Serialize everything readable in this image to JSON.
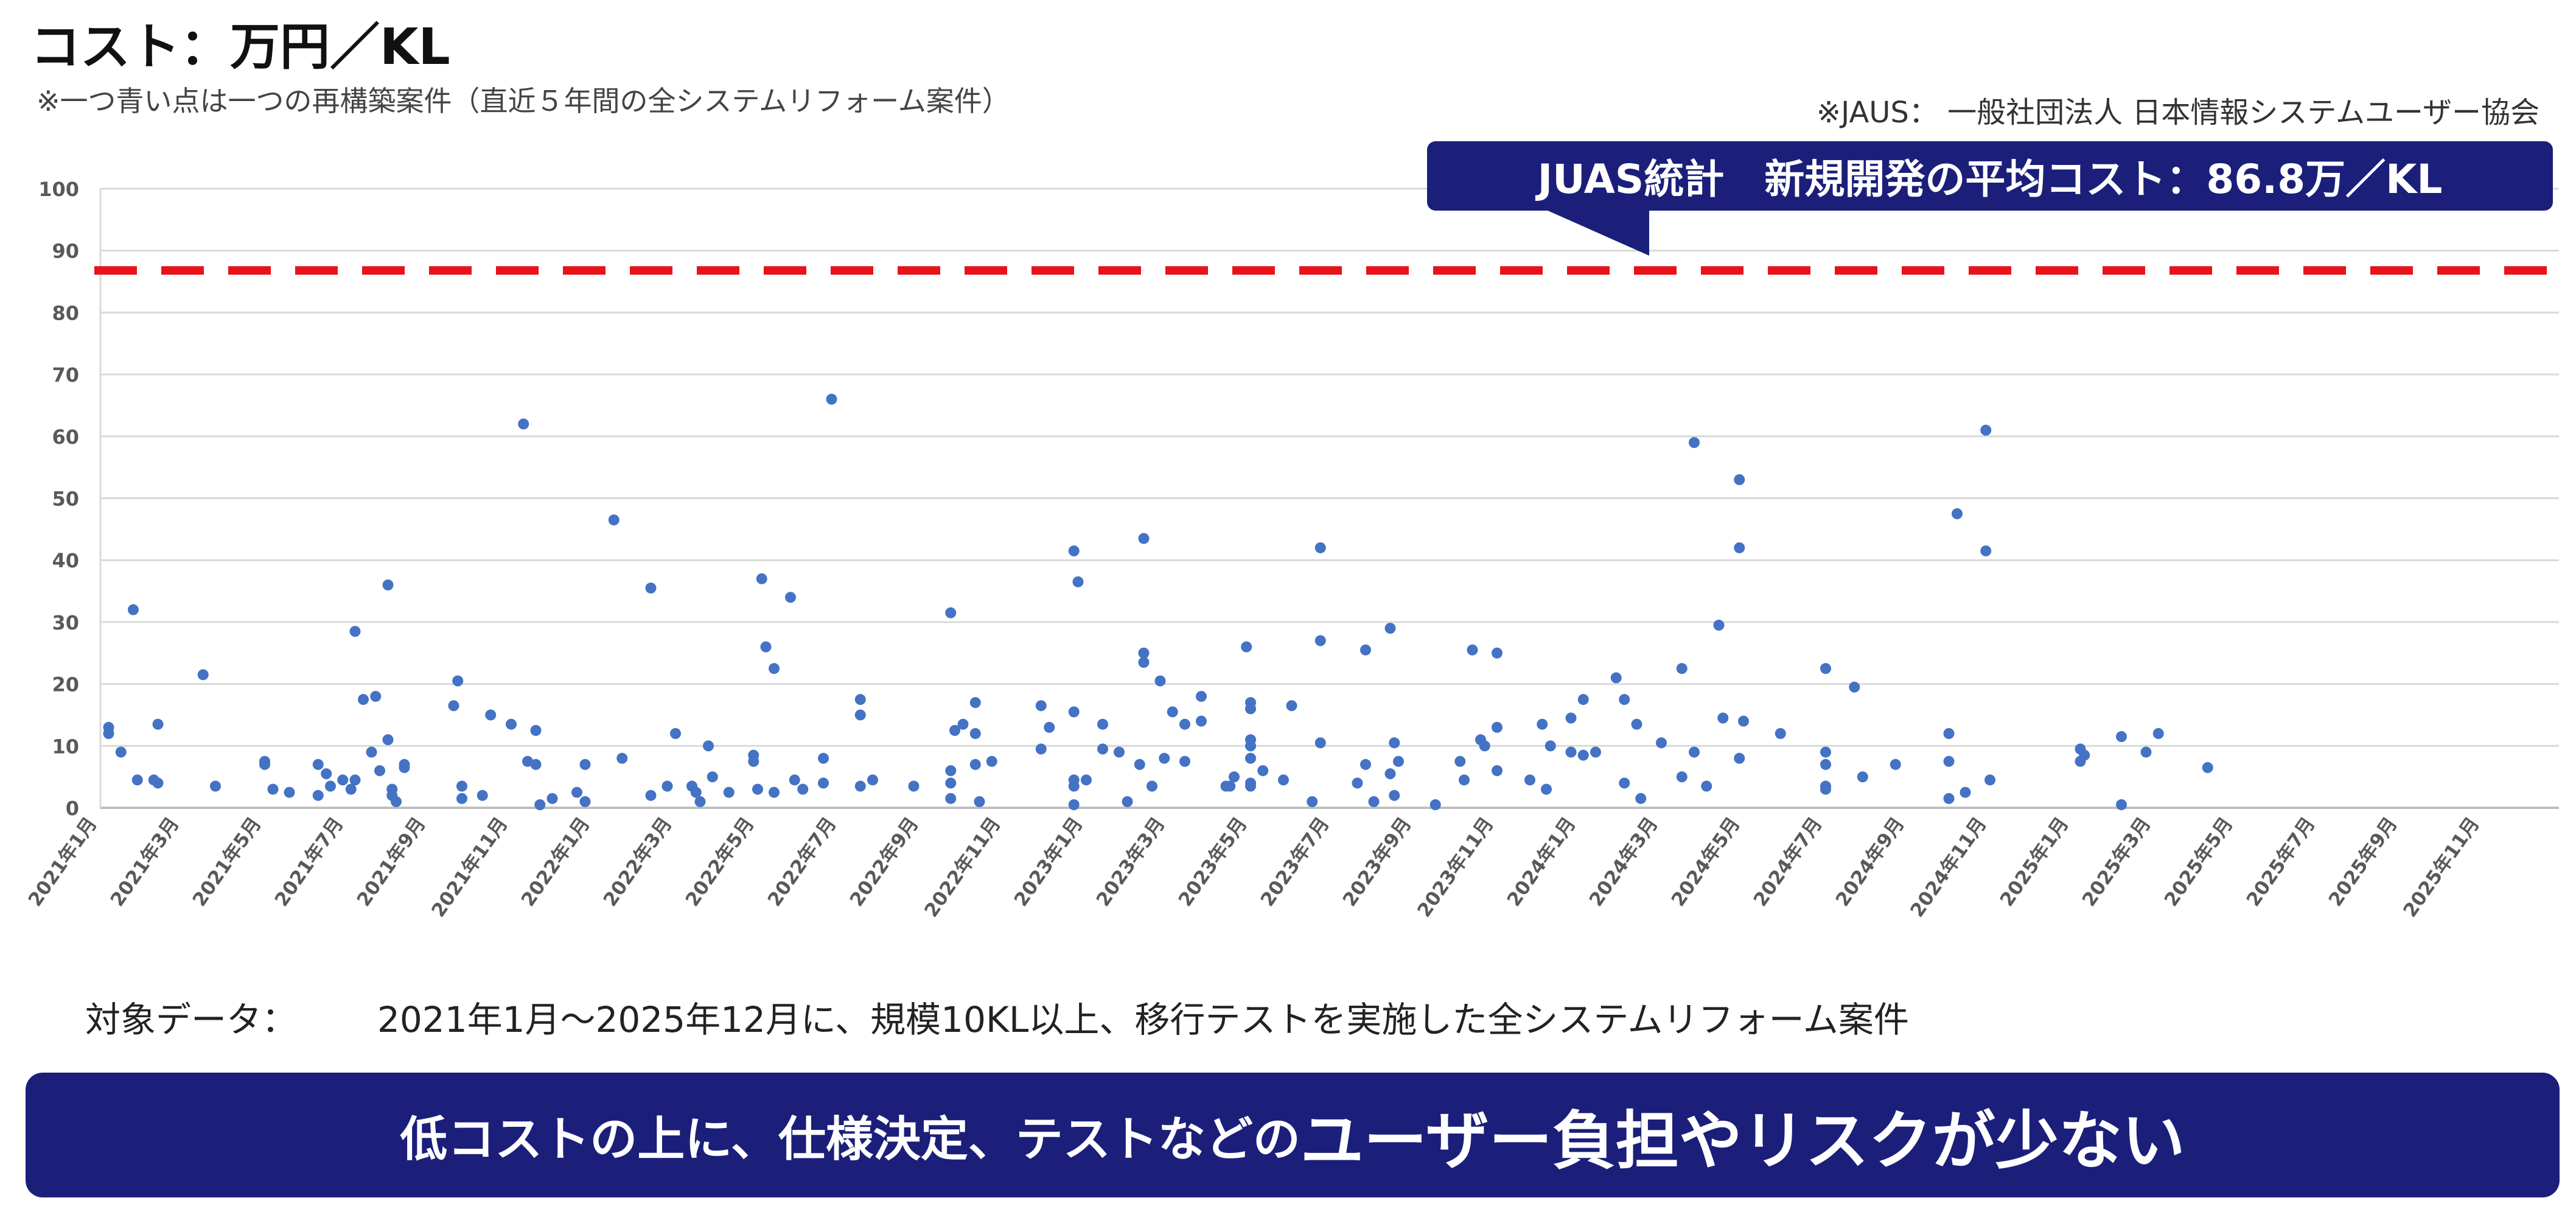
{
  "header": {
    "title": "コスト：万円／KL",
    "note": "※一つ青い点は一つの再構築案件（直近５年間の全システムリフォーム案件）",
    "source": "※JAUS： 一般社団法人 日本情報システムユーザー協会"
  },
  "callout": {
    "text": "JUAS統計　新規開発の平均コスト：86.8万／KL"
  },
  "footer": {
    "target_label": "対象データ：",
    "target_text": "2021年1月～2025年12月に、規模10KL以上、移行テストを実施した全システムリフォーム案件",
    "banner_small": "低コストの上に、仕様決定、テストなどの",
    "banner_big": "ユーザー負担やリスクが少ない"
  },
  "colors": {
    "point": "#4472c4",
    "reference_line": "#e8121a",
    "banner": "#1b1f7a",
    "grid": "#d9d9d9"
  },
  "chart_data": {
    "type": "scatter",
    "title": "",
    "xlabel": "",
    "ylabel": "",
    "ylim": [
      0,
      100
    ],
    "yticks": [
      0,
      10,
      20,
      30,
      40,
      50,
      60,
      70,
      80,
      90,
      100
    ],
    "x_range_months": [
      "2021-01",
      "2025-12"
    ],
    "x_tick_labels": [
      "2021年1月",
      "2021年3月",
      "2021年5月",
      "2021年7月",
      "2021年9月",
      "2021年11月",
      "2022年1月",
      "2022年3月",
      "2022年5月",
      "2022年7月",
      "2022年9月",
      "2022年11月",
      "2023年1月",
      "2023年3月",
      "2023年5月",
      "2023年7月",
      "2023年9月",
      "2023年11月",
      "2024年1月",
      "2024年3月",
      "2024年5月",
      "2024年7月",
      "2024年9月",
      "2024年11月",
      "2025年1月",
      "2025年3月",
      "2025年5月",
      "2025年7月",
      "2025年9月",
      "2025年11月"
    ],
    "reference_line": {
      "value": 86.8,
      "style": "dashed"
    },
    "grid": true,
    "legend": "none",
    "points": [
      [
        0.2,
        13
      ],
      [
        0.2,
        12
      ],
      [
        0.5,
        9
      ],
      [
        0.8,
        32
      ],
      [
        0.9,
        4.5
      ],
      [
        1.3,
        4.5
      ],
      [
        1.4,
        4
      ],
      [
        1.4,
        13.5
      ],
      [
        2.5,
        21.5
      ],
      [
        2.8,
        3.5
      ],
      [
        4.0,
        7.5
      ],
      [
        4.0,
        7
      ],
      [
        4.2,
        3
      ],
      [
        4.6,
        2.5
      ],
      [
        5.3,
        7
      ],
      [
        5.3,
        2
      ],
      [
        5.5,
        5.5
      ],
      [
        5.6,
        3.5
      ],
      [
        5.9,
        4.5
      ],
      [
        6.1,
        3
      ],
      [
        6.2,
        28.5
      ],
      [
        6.2,
        4.5
      ],
      [
        6.4,
        17.5
      ],
      [
        6.6,
        9
      ],
      [
        6.7,
        18
      ],
      [
        6.8,
        6
      ],
      [
        7.0,
        36
      ],
      [
        7.0,
        11
      ],
      [
        7.1,
        3
      ],
      [
        7.2,
        1
      ],
      [
        7.1,
        2
      ],
      [
        7.4,
        6.5
      ],
      [
        7.4,
        7
      ],
      [
        8.6,
        16.5
      ],
      [
        8.7,
        20.5
      ],
      [
        8.8,
        3.5
      ],
      [
        8.8,
        1.5
      ],
      [
        9.3,
        2
      ],
      [
        9.5,
        15
      ],
      [
        10.0,
        13.5
      ],
      [
        10.3,
        62
      ],
      [
        10.4,
        7.5
      ],
      [
        10.6,
        7
      ],
      [
        10.6,
        12.5
      ],
      [
        10.7,
        0.5
      ],
      [
        11.0,
        1.5
      ],
      [
        11.6,
        2.5
      ],
      [
        11.8,
        7
      ],
      [
        11.8,
        1
      ],
      [
        12.5,
        46.5
      ],
      [
        12.7,
        8
      ],
      [
        13.4,
        35.5
      ],
      [
        13.4,
        2
      ],
      [
        13.8,
        3.5
      ],
      [
        14.0,
        12
      ],
      [
        14.4,
        3.5
      ],
      [
        14.5,
        2.5
      ],
      [
        14.6,
        1
      ],
      [
        14.8,
        10
      ],
      [
        14.9,
        5
      ],
      [
        15.3,
        2.5
      ],
      [
        15.9,
        8.5
      ],
      [
        15.9,
        7.5
      ],
      [
        16.0,
        3
      ],
      [
        16.1,
        37
      ],
      [
        16.2,
        26
      ],
      [
        16.4,
        22.5
      ],
      [
        16.4,
        2.5
      ],
      [
        16.8,
        34
      ],
      [
        16.9,
        4.5
      ],
      [
        17.1,
        3
      ],
      [
        17.6,
        8
      ],
      [
        17.6,
        4
      ],
      [
        17.8,
        66
      ],
      [
        18.5,
        17.5
      ],
      [
        18.5,
        15
      ],
      [
        18.5,
        3.5
      ],
      [
        18.8,
        4.5
      ],
      [
        19.8,
        3.5
      ],
      [
        20.7,
        31.5
      ],
      [
        20.7,
        6
      ],
      [
        20.7,
        4
      ],
      [
        20.7,
        1.5
      ],
      [
        20.8,
        12.5
      ],
      [
        21.0,
        13.5
      ],
      [
        21.3,
        17
      ],
      [
        21.3,
        12
      ],
      [
        21.3,
        7
      ],
      [
        21.4,
        1
      ],
      [
        21.7,
        7.5
      ],
      [
        22.9,
        16.5
      ],
      [
        22.9,
        9.5
      ],
      [
        23.1,
        13
      ],
      [
        23.7,
        41.5
      ],
      [
        23.7,
        15.5
      ],
      [
        23.7,
        4.5
      ],
      [
        23.7,
        3.5
      ],
      [
        23.7,
        0.5
      ],
      [
        23.8,
        36.5
      ],
      [
        24.0,
        4.5
      ],
      [
        24.4,
        13.5
      ],
      [
        24.4,
        9.5
      ],
      [
        24.8,
        9
      ],
      [
        25.0,
        1
      ],
      [
        25.4,
        43.5
      ],
      [
        25.4,
        25
      ],
      [
        25.4,
        23.5
      ],
      [
        25.3,
        7
      ],
      [
        25.6,
        3.5
      ],
      [
        25.8,
        20.5
      ],
      [
        25.9,
        8
      ],
      [
        26.1,
        15.5
      ],
      [
        26.4,
        13.5
      ],
      [
        26.4,
        7.5
      ],
      [
        26.8,
        18
      ],
      [
        26.8,
        14
      ],
      [
        27.4,
        3.5
      ],
      [
        27.5,
        3.5
      ],
      [
        27.6,
        5
      ],
      [
        27.9,
        26
      ],
      [
        28.0,
        17
      ],
      [
        28.0,
        16
      ],
      [
        28.0,
        11
      ],
      [
        28.0,
        10
      ],
      [
        28.0,
        8
      ],
      [
        28.0,
        4
      ],
      [
        28.0,
        3.5
      ],
      [
        28.3,
        6
      ],
      [
        28.8,
        4.5
      ],
      [
        29.0,
        16.5
      ],
      [
        29.5,
        1
      ],
      [
        29.7,
        42
      ],
      [
        29.7,
        27
      ],
      [
        29.7,
        10.5
      ],
      [
        30.6,
        4
      ],
      [
        30.8,
        25.5
      ],
      [
        30.8,
        7
      ],
      [
        31.0,
        1
      ],
      [
        31.4,
        29
      ],
      [
        31.5,
        10.5
      ],
      [
        31.4,
        5.5
      ],
      [
        31.5,
        2
      ],
      [
        31.6,
        7.5
      ],
      [
        32.5,
        0.5
      ],
      [
        33.1,
        7.5
      ],
      [
        33.4,
        25.5
      ],
      [
        33.2,
        4.5
      ],
      [
        33.6,
        11
      ],
      [
        33.7,
        10
      ],
      [
        34.0,
        25
      ],
      [
        34.0,
        13
      ],
      [
        34.0,
        6
      ],
      [
        34.8,
        4.5
      ],
      [
        35.1,
        13.5
      ],
      [
        35.3,
        10
      ],
      [
        35.2,
        3
      ],
      [
        35.8,
        14.5
      ],
      [
        35.8,
        9
      ],
      [
        36.1,
        17.5
      ],
      [
        36.1,
        8.5
      ],
      [
        36.4,
        9
      ],
      [
        36.9,
        21
      ],
      [
        37.1,
        17.5
      ],
      [
        37.1,
        4
      ],
      [
        37.4,
        13.5
      ],
      [
        37.5,
        1.5
      ],
      [
        38.0,
        10.5
      ],
      [
        38.5,
        22.5
      ],
      [
        38.5,
        5
      ],
      [
        38.8,
        59
      ],
      [
        38.8,
        9
      ],
      [
        39.1,
        3.5
      ],
      [
        39.4,
        29.5
      ],
      [
        39.5,
        14.5
      ],
      [
        39.9,
        53
      ],
      [
        39.9,
        42
      ],
      [
        39.9,
        8
      ],
      [
        40.0,
        14
      ],
      [
        40.9,
        12
      ],
      [
        42.0,
        22.5
      ],
      [
        42.0,
        9
      ],
      [
        42.0,
        7
      ],
      [
        42.0,
        3.5
      ],
      [
        42.0,
        3
      ],
      [
        42.7,
        19.5
      ],
      [
        42.9,
        5
      ],
      [
        43.7,
        7
      ],
      [
        45.0,
        12
      ],
      [
        45.0,
        7.5
      ],
      [
        45.0,
        1.5
      ],
      [
        45.2,
        47.5
      ],
      [
        45.4,
        2.5
      ],
      [
        45.9,
        61
      ],
      [
        45.9,
        41.5
      ],
      [
        46.0,
        4.5
      ],
      [
        48.2,
        9.5
      ],
      [
        48.2,
        7.5
      ],
      [
        48.3,
        8.5
      ],
      [
        49.2,
        11.5
      ],
      [
        49.2,
        0.5
      ],
      [
        49.8,
        9
      ],
      [
        50.1,
        12
      ],
      [
        51.3,
        6.5
      ]
    ]
  }
}
